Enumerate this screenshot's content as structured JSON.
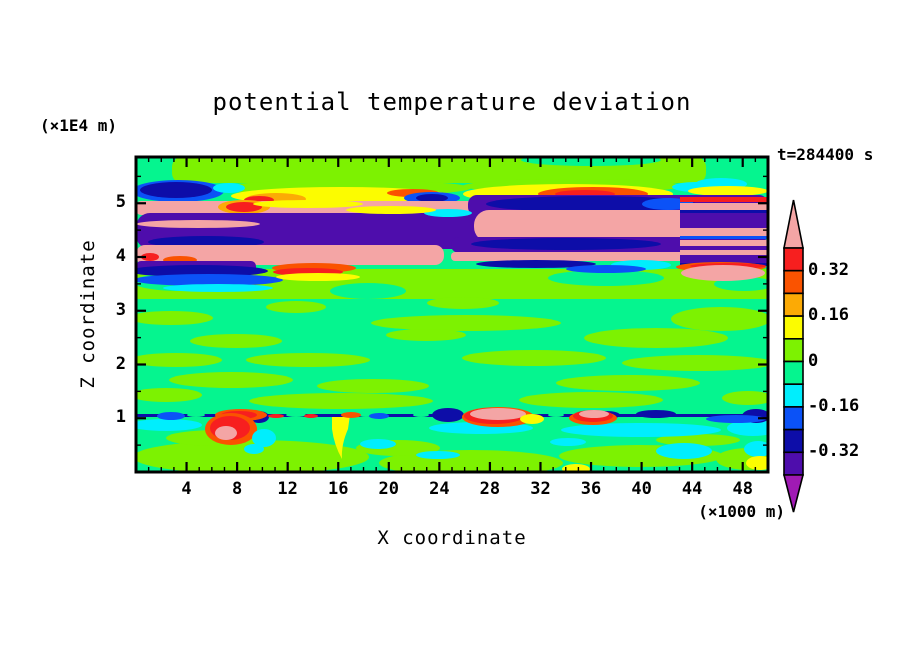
{
  "title": "potential temperature deviation",
  "time_label": "t=284400 s",
  "x_axis": {
    "label": "X coordinate",
    "unit_label": "(×1000 m)",
    "major_ticks": [
      4,
      8,
      12,
      16,
      20,
      24,
      28,
      32,
      36,
      40,
      44,
      48
    ],
    "minor_tick_step": 1,
    "range": [
      0,
      50
    ]
  },
  "y_axis": {
    "label": "Z coordinate",
    "unit_label": "(×1E4 m)",
    "major_ticks": [
      1,
      2,
      3,
      4,
      5
    ],
    "minor_tick_step": 0.5,
    "range": [
      0,
      5.86
    ]
  },
  "colorbar": {
    "labels": [
      "0.32",
      "0.16",
      "0",
      "-0.16",
      "-0.32"
    ],
    "label_boundary_indices": [
      1,
      3,
      5,
      7,
      9
    ],
    "box_colors": [
      "#f71f1f",
      "#fa5300",
      "#fcaa05",
      "#fcfc00",
      "#7df201",
      "#05f58f",
      "#00eefd",
      "#0b52f7",
      "#0d0da8",
      "#4e0dac"
    ],
    "arrow_top_color": "#f4a5a5",
    "arrow_bottom_color": "#a01ab4",
    "levels": [
      0.4,
      0.32,
      0.24,
      0.16,
      0.08,
      0,
      -0.08,
      -0.16,
      -0.24,
      -0.32,
      -0.4
    ]
  },
  "chart_data": {
    "type": "heatmap",
    "subtype": "filled-contour",
    "title": "potential temperature deviation",
    "xlabel": "X coordinate (×1000 m)",
    "ylabel": "Z coordinate (×1E4 m)",
    "time": "t=284400 s",
    "xlim": [
      0,
      50
    ],
    "ylim": [
      0,
      5.86
    ],
    "grid": false,
    "legend_position": "right-colorbar",
    "contour_levels": [
      -0.4,
      -0.32,
      -0.24,
      -0.16,
      -0.08,
      0,
      0.08,
      0.16,
      0.24,
      0.32,
      0.4
    ],
    "palette": {
      "pink": "#f4a5a5",
      "red": "#f71f1f",
      "orred": "#fa5300",
      "orange": "#fcaa05",
      "yellow": "#fcfc00",
      "chart": "#7df201",
      "spring": "#05f58f",
      "aqua": "#00eefd",
      "blue": "#0b52f7",
      "navy": "#0d0da8",
      "violet": "#4e0dac",
      "purple": "#a01ab4"
    },
    "features": [
      "strongly banded layer between z=4.0 and z=5.3 (×1E4 m): alternating pink (>0.4), red/orange (0.24-0.4) and navy/violet (<-0.24) sheets spanning all x",
      "thin perturbed sheet near z=1.0 with negative (navy) filaments and local positive extrema (>0.4, pink cores) near x=7-9, x=27-29 and x=35-36",
      "weak deviations (-0.08 to +0.08) elsewhere: mottled spring-green / chartreuse field",
      "narrow yellow positive streak descending below z=1 near x=16",
      "cyan (-0.16 to -0.08) pockets just below the z=1 sheet and near the bottom-right"
    ],
    "field_shapes": [
      [
        "r",
        0,
        0,
        632,
        315,
        0,
        "spring"
      ],
      [
        "r",
        36,
        0,
        534,
        26,
        10,
        "chart"
      ],
      [
        "e",
        455,
        3,
        70,
        6,
        "spring"
      ],
      [
        "e",
        585,
        27,
        26,
        6,
        "aqua"
      ],
      [
        "r",
        0,
        112,
        632,
        30,
        0,
        "chart"
      ],
      [
        "e",
        45,
        125,
        48,
        9,
        "spring"
      ],
      [
        "e",
        232,
        134,
        38,
        8,
        "spring"
      ],
      [
        "e",
        470,
        121,
        58,
        8,
        "spring"
      ],
      [
        "e",
        608,
        127,
        30,
        7,
        "spring"
      ],
      [
        "e",
        160,
        150,
        30,
        6,
        "chart"
      ],
      [
        "e",
        327,
        146,
        36,
        6,
        "chart"
      ],
      [
        "e",
        35,
        161,
        42,
        7,
        "chart"
      ],
      [
        "e",
        330,
        166,
        95,
        8,
        "chart"
      ],
      [
        "e",
        585,
        162,
        50,
        12,
        "chart"
      ],
      [
        "e",
        100,
        184,
        46,
        7,
        "chart"
      ],
      [
        "e",
        290,
        178,
        40,
        6,
        "chart"
      ],
      [
        "e",
        520,
        181,
        72,
        10,
        "chart"
      ],
      [
        "e",
        40,
        203,
        46,
        7,
        "chart"
      ],
      [
        "e",
        172,
        203,
        62,
        7,
        "chart"
      ],
      [
        "e",
        398,
        201,
        72,
        8,
        "chart"
      ],
      [
        "e",
        562,
        206,
        76,
        8,
        "chart"
      ],
      [
        "e",
        95,
        223,
        62,
        8,
        "chart"
      ],
      [
        "e",
        237,
        229,
        56,
        7,
        "chart"
      ],
      [
        "e",
        492,
        226,
        72,
        8,
        "chart"
      ],
      [
        "e",
        30,
        238,
        36,
        7,
        "chart"
      ],
      [
        "e",
        205,
        244,
        92,
        8,
        "chart"
      ],
      [
        "e",
        455,
        243,
        72,
        8,
        "chart"
      ],
      [
        "e",
        612,
        241,
        26,
        7,
        "chart"
      ],
      [
        "e",
        115,
        300,
        118,
        17,
        "chart"
      ],
      [
        "e",
        82,
        281,
        52,
        8,
        "chart"
      ],
      [
        "e",
        335,
        306,
        92,
        13,
        "chart"
      ],
      [
        "e",
        505,
        299,
        82,
        11,
        "chart"
      ],
      [
        "e",
        612,
        302,
        32,
        11,
        "chart"
      ],
      [
        "e",
        262,
        291,
        42,
        8,
        "chart"
      ],
      [
        "e",
        562,
        283,
        42,
        6,
        "chart"
      ],
      [
        "e",
        30,
        268,
        36,
        6,
        "aqua"
      ],
      [
        "e",
        345,
        271,
        52,
        6,
        "aqua"
      ],
      [
        "e",
        505,
        273,
        80,
        7,
        "aqua"
      ],
      [
        "e",
        617,
        271,
        26,
        8,
        "aqua"
      ],
      [
        "e",
        242,
        287,
        18,
        5,
        "aqua"
      ],
      [
        "e",
        302,
        298,
        22,
        4,
        "aqua"
      ],
      [
        "e",
        548,
        294,
        28,
        8,
        "aqua"
      ],
      [
        "e",
        432,
        285,
        18,
        4,
        "aqua"
      ],
      [
        "e",
        622,
        292,
        14,
        8,
        "aqua"
      ],
      [
        "p",
        "M196,258 L214,258 L212,272 Q205,288 206,302 Q198,288 196,272 Z",
        "yellow"
      ],
      [
        "e",
        624,
        306,
        14,
        7,
        "yellow"
      ],
      [
        "e",
        440,
        312,
        14,
        5,
        "yellow"
      ],
      [
        "r",
        0,
        257,
        632,
        3,
        1,
        "navy"
      ],
      [
        "e",
        60,
        258,
        9,
        2,
        "spring"
      ],
      [
        "e",
        160,
        258,
        10,
        2,
        "spring"
      ],
      [
        "e",
        230,
        258,
        8,
        2,
        "spring"
      ],
      [
        "e",
        285,
        258,
        8,
        2,
        "spring"
      ],
      [
        "e",
        420,
        258,
        8,
        2,
        "spring"
      ],
      [
        "e",
        35,
        259,
        14,
        4,
        "blue"
      ],
      [
        "e",
        123,
        260,
        10,
        6,
        "navy"
      ],
      [
        "e",
        243,
        259,
        10,
        3,
        "blue"
      ],
      [
        "e",
        312,
        258,
        16,
        7,
        "navy"
      ],
      [
        "e",
        470,
        258,
        14,
        4,
        "navy"
      ],
      [
        "e",
        520,
        257,
        20,
        4,
        "navy"
      ],
      [
        "e",
        620,
        259,
        14,
        7,
        "navy"
      ],
      [
        "e",
        600,
        262,
        30,
        4,
        "blue"
      ],
      [
        "e",
        105,
        258,
        26,
        6,
        "orred"
      ],
      [
        "e",
        103,
        258,
        18,
        4,
        "red"
      ],
      [
        "e",
        95,
        272,
        26,
        16,
        "orred"
      ],
      [
        "e",
        94,
        271,
        20,
        12,
        "red"
      ],
      [
        "e",
        90,
        276,
        11,
        7,
        "pink"
      ],
      [
        "e",
        128,
        281,
        12,
        9,
        "aqua"
      ],
      [
        "e",
        118,
        292,
        10,
        5,
        "aqua"
      ],
      [
        "e",
        362,
        260,
        36,
        10,
        "orred"
      ],
      [
        "e",
        358,
        259,
        30,
        8,
        "red"
      ],
      [
        "e",
        362,
        257,
        28,
        6,
        "pink"
      ],
      [
        "e",
        396,
        262,
        12,
        5,
        "yellow"
      ],
      [
        "e",
        457,
        261,
        24,
        7,
        "orred"
      ],
      [
        "e",
        457,
        259,
        20,
        6,
        "red"
      ],
      [
        "e",
        458,
        257,
        15,
        4,
        "pink"
      ],
      [
        "e",
        140,
        259,
        8,
        2,
        "red"
      ],
      [
        "e",
        175,
        259,
        7,
        2,
        "red"
      ],
      [
        "e",
        215,
        258,
        10,
        3,
        "orred"
      ],
      [
        "e",
        210,
        31,
        125,
        8,
        "chart"
      ],
      [
        "e",
        437,
        29,
        110,
        7,
        "chart"
      ],
      [
        "e",
        205,
        39,
        110,
        9,
        "yellow"
      ],
      [
        "e",
        432,
        37,
        105,
        10,
        "yellow"
      ],
      [
        "e",
        140,
        42,
        30,
        6,
        "orange"
      ],
      [
        "e",
        123,
        43,
        15,
        4,
        "red"
      ],
      [
        "e",
        277,
        36,
        26,
        4,
        "orred"
      ],
      [
        "e",
        457,
        37,
        55,
        7,
        "orred"
      ],
      [
        "e",
        449,
        37,
        30,
        4,
        "red"
      ],
      [
        "e",
        42,
        34,
        46,
        11,
        "blue"
      ],
      [
        "e",
        40,
        33,
        36,
        8,
        "navy"
      ],
      [
        "e",
        93,
        31,
        16,
        5,
        "aqua"
      ],
      [
        "e",
        296,
        41,
        28,
        6,
        "blue"
      ],
      [
        "e",
        296,
        41,
        16,
        4,
        "navy"
      ],
      [
        "e",
        560,
        30,
        24,
        5,
        "aqua"
      ],
      [
        "e",
        592,
        34,
        40,
        5,
        "yellow"
      ],
      [
        "r",
        0,
        44,
        632,
        14,
        5,
        "pink"
      ],
      [
        "e",
        108,
        50,
        26,
        7,
        "orange"
      ],
      [
        "e",
        108,
        50,
        18,
        5,
        "red"
      ],
      [
        "e",
        172,
        47,
        55,
        4,
        "yellow"
      ],
      [
        "r",
        332,
        38,
        300,
        21,
        9,
        "violet"
      ],
      [
        "e",
        455,
        47,
        105,
        8,
        "navy"
      ],
      [
        "e",
        532,
        47,
        26,
        6,
        "blue"
      ],
      [
        "r",
        0,
        56,
        348,
        36,
        14,
        "violet"
      ],
      [
        "e",
        62,
        67,
        62,
        4,
        "pink"
      ],
      [
        "e",
        70,
        85,
        58,
        6,
        "navy"
      ],
      [
        "r",
        338,
        53,
        230,
        32,
        15,
        "pink"
      ],
      [
        "e",
        312,
        56,
        24,
        4,
        "aqua"
      ],
      [
        "e",
        255,
        53,
        45,
        4,
        "yellow"
      ],
      [
        "e",
        565,
        87,
        38,
        6,
        "yellow"
      ],
      [
        "e",
        578,
        91,
        32,
        5,
        "orred"
      ],
      [
        "e",
        590,
        94,
        26,
        4,
        "red"
      ],
      [
        "r",
        315,
        80,
        317,
        16,
        8,
        "violet"
      ],
      [
        "e",
        430,
        87,
        95,
        6,
        "navy"
      ],
      [
        "r",
        0,
        88,
        308,
        20,
        9,
        "pink"
      ],
      [
        "e",
        14,
        100,
        9,
        4,
        "red"
      ],
      [
        "e",
        44,
        103,
        17,
        4,
        "orred"
      ],
      [
        "r",
        315,
        95,
        317,
        9,
        4,
        "pink"
      ],
      [
        "r",
        544,
        40,
        88,
        5,
        0,
        "red"
      ],
      [
        "r",
        544,
        46,
        88,
        7,
        0,
        "pink"
      ],
      [
        "r",
        544,
        53,
        88,
        3,
        0,
        "navy"
      ],
      [
        "r",
        544,
        56,
        88,
        15,
        0,
        "violet"
      ],
      [
        "r",
        544,
        71,
        88,
        8,
        0,
        "pink"
      ],
      [
        "r",
        544,
        79,
        88,
        3,
        0,
        "blue"
      ],
      [
        "r",
        544,
        83,
        88,
        6,
        0,
        "pink"
      ],
      [
        "r",
        544,
        89,
        88,
        4,
        0,
        "violet"
      ],
      [
        "r",
        544,
        93,
        88,
        5,
        0,
        "pink"
      ],
      [
        "r",
        544,
        98,
        88,
        10,
        0,
        "violet"
      ],
      [
        "r",
        544,
        106,
        88,
        3,
        0,
        "navy"
      ],
      [
        "e",
        585,
        110,
        45,
        5,
        "orred"
      ],
      [
        "e",
        592,
        109,
        38,
        3,
        "red"
      ],
      [
        "e",
        587,
        116,
        42,
        8,
        "pink"
      ],
      [
        "r",
        0,
        104,
        120,
        12,
        5,
        "violet"
      ],
      [
        "e",
        62,
        114,
        70,
        6,
        "navy"
      ],
      [
        "e",
        72,
        123,
        75,
        6,
        "blue"
      ],
      [
        "e",
        82,
        131,
        55,
        4,
        "aqua"
      ],
      [
        "e",
        178,
        111,
        42,
        5,
        "orred"
      ],
      [
        "e",
        172,
        115,
        35,
        4,
        "red"
      ],
      [
        "e",
        182,
        120,
        42,
        4,
        "yellow"
      ],
      [
        "e",
        505,
        108,
        30,
        5,
        "aqua"
      ],
      [
        "e",
        400,
        107,
        60,
        4,
        "navy"
      ],
      [
        "e",
        470,
        112,
        40,
        4,
        "blue"
      ]
    ]
  }
}
